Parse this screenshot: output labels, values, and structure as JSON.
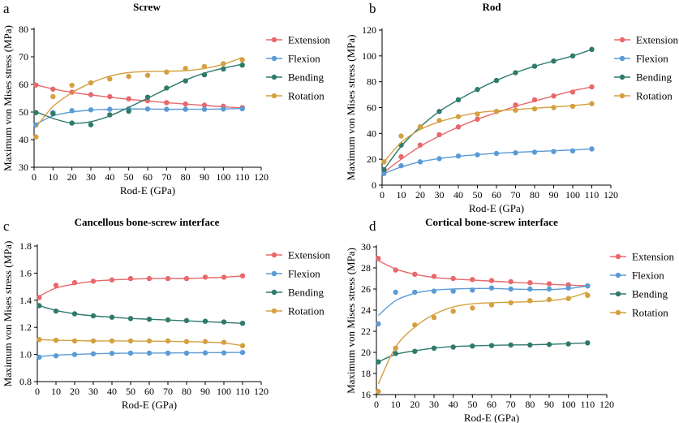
{
  "figure": {
    "series_colors": {
      "Extension": "#e8686b",
      "Flexion": "#5b9bd5",
      "Bending": "#2e7a6b",
      "Rotation": "#d4a040"
    }
  },
  "chart_data": [
    {
      "id": "a",
      "type": "scatter",
      "letter": "a",
      "title": "Screw",
      "xlabel": "Rod-E (GPa)",
      "ylabel": "Maximum von Mises stress (MPa)",
      "xlim": [
        0,
        120
      ],
      "ylim": [
        30,
        80
      ],
      "xticks": [
        0,
        10,
        20,
        30,
        40,
        50,
        60,
        70,
        80,
        90,
        100,
        110,
        120
      ],
      "yticks": [
        30,
        40,
        50,
        60,
        70,
        80
      ],
      "legend_position": "right",
      "x": [
        1,
        10,
        20,
        30,
        40,
        50,
        60,
        70,
        80,
        90,
        100,
        110
      ],
      "series": [
        {
          "name": "Extension",
          "values": [
            59.8,
            58.3,
            57.2,
            56.3,
            55.6,
            54.8,
            54.1,
            53.4,
            52.9,
            52.5,
            52.1,
            51.6
          ],
          "fit": [
            59.8,
            58.4,
            57.1,
            56.2,
            55.4,
            54.6,
            54.0,
            53.4,
            52.9,
            52.4,
            51.9,
            51.5
          ]
        },
        {
          "name": "Flexion",
          "values": [
            45.3,
            49.8,
            50.5,
            50.8,
            51.0,
            51.2,
            51.1,
            51.0,
            51.0,
            51.0,
            51.1,
            51.2
          ],
          "fit": [
            45.6,
            48.6,
            50.0,
            50.7,
            51.0,
            51.1,
            51.1,
            51.0,
            51.0,
            51.0,
            51.1,
            51.3
          ]
        },
        {
          "name": "Bending",
          "values": [
            49.8,
            49.4,
            46.0,
            45.4,
            49.0,
            50.3,
            55.4,
            58.7,
            61.3,
            63.5,
            65.6,
            67.0
          ],
          "fit": [
            50.1,
            47.7,
            46.0,
            46.5,
            48.6,
            51.7,
            55.0,
            58.4,
            61.6,
            64.1,
            65.9,
            67.3
          ]
        },
        {
          "name": "Rotation",
          "values": [
            41.0,
            55.6,
            59.7,
            60.6,
            62.0,
            62.9,
            63.3,
            64.5,
            65.8,
            66.5,
            67.5,
            68.9
          ],
          "fit": [
            44.5,
            52.0,
            57.0,
            60.5,
            63.0,
            64.3,
            64.7,
            64.8,
            65.0,
            65.8,
            67.3,
            69.8
          ]
        }
      ]
    },
    {
      "id": "b",
      "type": "scatter",
      "letter": "b",
      "title": "Rod",
      "xlabel": "Rod-E (GPa)",
      "ylabel": "Maximum von Mises stress (MPa)",
      "xlim": [
        0,
        120
      ],
      "ylim": [
        0,
        120
      ],
      "xticks": [
        0,
        10,
        20,
        30,
        40,
        50,
        60,
        70,
        80,
        90,
        100,
        110,
        120
      ],
      "yticks": [
        0,
        20,
        40,
        60,
        80,
        100,
        120
      ],
      "legend_position": "right",
      "x": [
        1,
        10,
        20,
        30,
        40,
        50,
        60,
        70,
        80,
        90,
        100,
        110
      ],
      "series": [
        {
          "name": "Extension",
          "values": [
            10,
            22,
            31,
            39,
            45,
            51,
            57,
            62,
            66,
            69,
            72,
            76
          ],
          "fit": [
            10,
            20,
            30,
            38,
            45,
            51,
            56,
            61,
            65,
            69,
            73,
            76
          ]
        },
        {
          "name": "Flexion",
          "values": [
            9,
            15,
            18,
            20.5,
            22.5,
            23.5,
            24.5,
            25,
            25.5,
            26,
            26.5,
            28
          ],
          "fit": [
            9,
            14,
            18,
            20.5,
            22.3,
            23.6,
            24.6,
            25.4,
            26,
            26.6,
            27.2,
            28
          ]
        },
        {
          "name": "Bending",
          "values": [
            12,
            31,
            45,
            57,
            66,
            74,
            81,
            87,
            92,
            96,
            100,
            105
          ],
          "fit": [
            12,
            30,
            45,
            57,
            66,
            74,
            81,
            87,
            92,
            96,
            100,
            105
          ]
        },
        {
          "name": "Rotation",
          "values": [
            18,
            38,
            45,
            50,
            53,
            55,
            57,
            58,
            59,
            60,
            61,
            63
          ],
          "fit": [
            18,
            33,
            43,
            49,
            53,
            56,
            57.5,
            58.5,
            59.5,
            60.5,
            61.5,
            63
          ]
        }
      ]
    },
    {
      "id": "c",
      "type": "scatter",
      "letter": "c",
      "title": "Cancellous bone-screw interface",
      "xlabel": "Rod-E (GPa)",
      "ylabel": "Maximum von Mises stress (MPa)",
      "xlim": [
        0,
        120
      ],
      "ylim": [
        0.8,
        1.8
      ],
      "xticks": [
        0,
        10,
        20,
        30,
        40,
        50,
        60,
        70,
        80,
        90,
        100,
        110,
        120
      ],
      "yticks": [
        0.8,
        1.0,
        1.2,
        1.4,
        1.6,
        1.8
      ],
      "legend_position": "right",
      "x": [
        1,
        10,
        20,
        30,
        40,
        50,
        60,
        70,
        80,
        90,
        100,
        110
      ],
      "series": [
        {
          "name": "Extension",
          "values": [
            1.42,
            1.51,
            1.53,
            1.54,
            1.55,
            1.56,
            1.56,
            1.56,
            1.56,
            1.57,
            1.57,
            1.58
          ],
          "fit": [
            1.43,
            1.49,
            1.52,
            1.54,
            1.55,
            1.555,
            1.56,
            1.56,
            1.56,
            1.565,
            1.57,
            1.58
          ]
        },
        {
          "name": "Flexion",
          "values": [
            0.98,
            0.99,
            1.0,
            1.005,
            1.008,
            1.01,
            1.01,
            1.01,
            1.01,
            1.012,
            1.012,
            1.015
          ],
          "fit": [
            0.985,
            0.995,
            1.0,
            1.005,
            1.008,
            1.01,
            1.01,
            1.011,
            1.012,
            1.013,
            1.014,
            1.015
          ]
        },
        {
          "name": "Bending",
          "values": [
            1.36,
            1.32,
            1.3,
            1.285,
            1.275,
            1.265,
            1.26,
            1.255,
            1.25,
            1.245,
            1.24,
            1.23
          ],
          "fit": [
            1.36,
            1.325,
            1.3,
            1.285,
            1.275,
            1.266,
            1.26,
            1.254,
            1.248,
            1.242,
            1.236,
            1.23
          ]
        },
        {
          "name": "Rotation",
          "values": [
            1.11,
            1.105,
            1.1,
            1.1,
            1.1,
            1.1,
            1.1,
            1.1,
            1.095,
            1.095,
            1.09,
            1.065
          ],
          "fit": [
            1.11,
            1.105,
            1.103,
            1.1,
            1.1,
            1.099,
            1.098,
            1.097,
            1.095,
            1.092,
            1.085,
            1.065
          ]
        }
      ]
    },
    {
      "id": "d",
      "type": "scatter",
      "letter": "d",
      "title": "Cortical bone-screw interface",
      "xlabel": "Rod-E (GPa)",
      "ylabel": "Maximum von Mises stress (MPa)",
      "xlim": [
        0,
        120
      ],
      "ylim": [
        16,
        30
      ],
      "xticks": [
        0,
        10,
        20,
        30,
        40,
        50,
        60,
        70,
        80,
        90,
        100,
        110,
        120
      ],
      "yticks": [
        16,
        18,
        20,
        22,
        24,
        26,
        28,
        30
      ],
      "legend_position": "right",
      "x": [
        1,
        10,
        20,
        30,
        40,
        50,
        60,
        70,
        80,
        90,
        100,
        110
      ],
      "series": [
        {
          "name": "Extension",
          "values": [
            28.9,
            27.8,
            27.4,
            27.2,
            27.0,
            26.9,
            26.8,
            26.7,
            26.6,
            26.5,
            26.4,
            26.3
          ],
          "fit": [
            28.7,
            27.9,
            27.4,
            27.1,
            26.95,
            26.85,
            26.75,
            26.65,
            26.55,
            26.45,
            26.37,
            26.3
          ]
        },
        {
          "name": "Flexion",
          "values": [
            22.7,
            25.7,
            25.7,
            25.8,
            25.8,
            25.9,
            26.1,
            26.0,
            26.0,
            26.0,
            26.1,
            26.3
          ],
          "fit": [
            23.5,
            24.9,
            25.6,
            25.9,
            26.0,
            26.05,
            26.05,
            26.0,
            25.95,
            25.95,
            26.05,
            26.3
          ]
        },
        {
          "name": "Bending",
          "values": [
            19.1,
            19.9,
            20.1,
            20.4,
            20.5,
            20.6,
            20.65,
            20.7,
            20.7,
            20.75,
            20.8,
            20.9
          ],
          "fit": [
            19.1,
            19.8,
            20.15,
            20.4,
            20.55,
            20.62,
            20.66,
            20.7,
            20.72,
            20.76,
            20.82,
            20.9
          ]
        },
        {
          "name": "Rotation",
          "values": [
            16.3,
            20.4,
            22.6,
            23.3,
            23.9,
            24.2,
            24.5,
            24.7,
            24.9,
            25.0,
            25.1,
            25.4
          ],
          "fit": [
            17.0,
            20.5,
            22.4,
            23.6,
            24.3,
            24.6,
            24.7,
            24.75,
            24.8,
            24.9,
            25.15,
            25.7
          ]
        }
      ]
    }
  ]
}
